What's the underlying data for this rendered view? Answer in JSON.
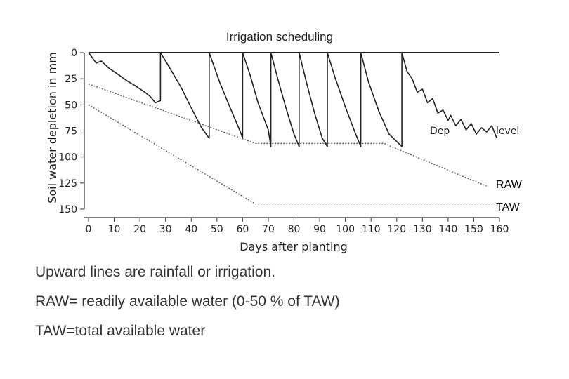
{
  "chart_data": {
    "type": "line",
    "title": "Irrigation scheduling",
    "xlabel": "Days after planting",
    "ylabel": "Soil water depletion in mm",
    "xlim": [
      0,
      160
    ],
    "ylim": [
      0,
      150
    ],
    "y_inverted": true,
    "x_ticks": [
      "0",
      "10",
      "20",
      "30",
      "40",
      "50",
      "60",
      "70",
      "80",
      "90",
      "100",
      "110",
      "120",
      "130",
      "140",
      "150",
      "160"
    ],
    "y_ticks": [
      "0",
      "25",
      "50",
      "75",
      "100",
      "125",
      "150"
    ],
    "series": [
      {
        "name": "RAW",
        "style": "dotted",
        "x": [
          0,
          65,
          115,
          155
        ],
        "y": [
          30,
          87,
          87,
          128
        ]
      },
      {
        "name": "TAW",
        "style": "dotted",
        "x": [
          0,
          65,
          160
        ],
        "y": [
          50,
          145,
          145
        ]
      },
      {
        "name": "",
        "style": "solid",
        "x": [
          0,
          3,
          5,
          8,
          11,
          15,
          19,
          22,
          24,
          26,
          28,
          28,
          31,
          36,
          40,
          44,
          47,
          47,
          51,
          55,
          59,
          60,
          60,
          63,
          66,
          70,
          71,
          71,
          74,
          77,
          80,
          82,
          82,
          85,
          88,
          91,
          93,
          93,
          96,
          100,
          104,
          106,
          106,
          109,
          113,
          117,
          122,
          122,
          124,
          126,
          128,
          130,
          132,
          134,
          136,
          138,
          140,
          141,
          143,
          145,
          147,
          149,
          151,
          153,
          155,
          157,
          159
        ],
        "y": [
          0,
          10,
          8,
          15,
          20,
          27,
          33,
          38,
          42,
          48,
          46,
          0,
          12,
          33,
          53,
          72,
          82,
          0,
          28,
          52,
          75,
          82,
          0,
          22,
          48,
          74,
          90,
          0,
          28,
          54,
          78,
          90,
          0,
          30,
          58,
          82,
          90,
          0,
          24,
          52,
          78,
          90,
          0,
          28,
          56,
          78,
          90,
          0,
          18,
          25,
          38,
          35,
          48,
          44,
          58,
          55,
          65,
          60,
          70,
          64,
          74,
          68,
          78,
          72,
          76,
          70,
          82
        ]
      }
    ],
    "horizontal_line": {
      "y": 0,
      "x": [
        0,
        160
      ]
    },
    "annotations": [
      "Dep",
      "level",
      "RAW",
      "TAW"
    ]
  },
  "notes": [
    "Upward lines are rainfall or irrigation.",
    "RAW= readily available water (0-50 %  of TAW)",
    "TAW=total available water"
  ],
  "colors": {
    "line": "#222222",
    "dotted": "#555555",
    "text": "#333333"
  }
}
